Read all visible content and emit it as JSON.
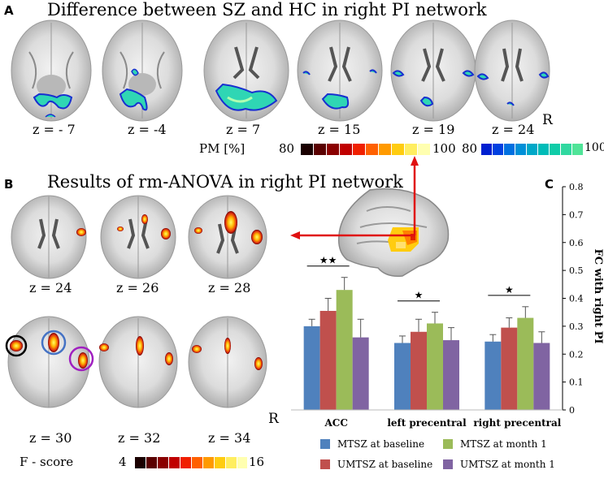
{
  "panelA": {
    "letter": "A",
    "title": "Difference between SZ and HC in  right PI network",
    "z_labels": [
      "z = - 7",
      "z = -4",
      "z = 7",
      "z = 15",
      "z = 19",
      "z = 24"
    ],
    "orientation": "R",
    "scale_label": "PM [%]",
    "scale1_min": "80",
    "scale1_max": "100",
    "scale2_min": "80",
    "scale2_max": "100"
  },
  "panelB": {
    "letter": "B",
    "title": "Results of rm-ANOVA in right PI network",
    "z_labels": [
      "z = 24",
      "z = 26",
      "z = 28",
      "z = 30",
      "z = 32",
      "z = 34"
    ],
    "orientation": "R",
    "scale_label": "F - score",
    "scale_min": "4",
    "scale_max": "16"
  },
  "panelC": {
    "letter": "C"
  },
  "colors": {
    "MTSZ_baseline": "#4f81bd",
    "UMTSZ_baseline": "#c0504d",
    "MTSZ_month1": "#9bbb59",
    "UMTSZ_month1": "#8064a2"
  },
  "chart_data": {
    "type": "bar",
    "categories": [
      "ACC",
      "left precentral",
      "right precentral"
    ],
    "series": [
      {
        "name": "MTSZ at baseline",
        "values": [
          0.3,
          0.24,
          0.245
        ],
        "errors": [
          0.025,
          0.025,
          0.025
        ]
      },
      {
        "name": "UMTSZ at baseline",
        "values": [
          0.355,
          0.28,
          0.295
        ],
        "errors": [
          0.045,
          0.045,
          0.035
        ]
      },
      {
        "name": "MTSZ at month 1",
        "values": [
          0.43,
          0.31,
          0.33
        ],
        "errors": [
          0.045,
          0.04,
          0.04
        ]
      },
      {
        "name": "UMTSZ at month 1",
        "values": [
          0.26,
          0.25,
          0.24
        ],
        "errors": [
          0.065,
          0.045,
          0.04
        ]
      }
    ],
    "ylabel": "FC with right PI",
    "ylim": [
      0,
      0.8
    ],
    "yticks": [
      "0",
      "0.1",
      "0.2",
      "0.3",
      "0.4",
      "0.5",
      "0.6",
      "0.7",
      "0.8"
    ],
    "significance": [
      {
        "category": "ACC",
        "label": "★★"
      },
      {
        "category": "left precentral",
        "label": "★"
      },
      {
        "category": "right precentral",
        "label": "★"
      }
    ],
    "legend_position": "bottom"
  }
}
